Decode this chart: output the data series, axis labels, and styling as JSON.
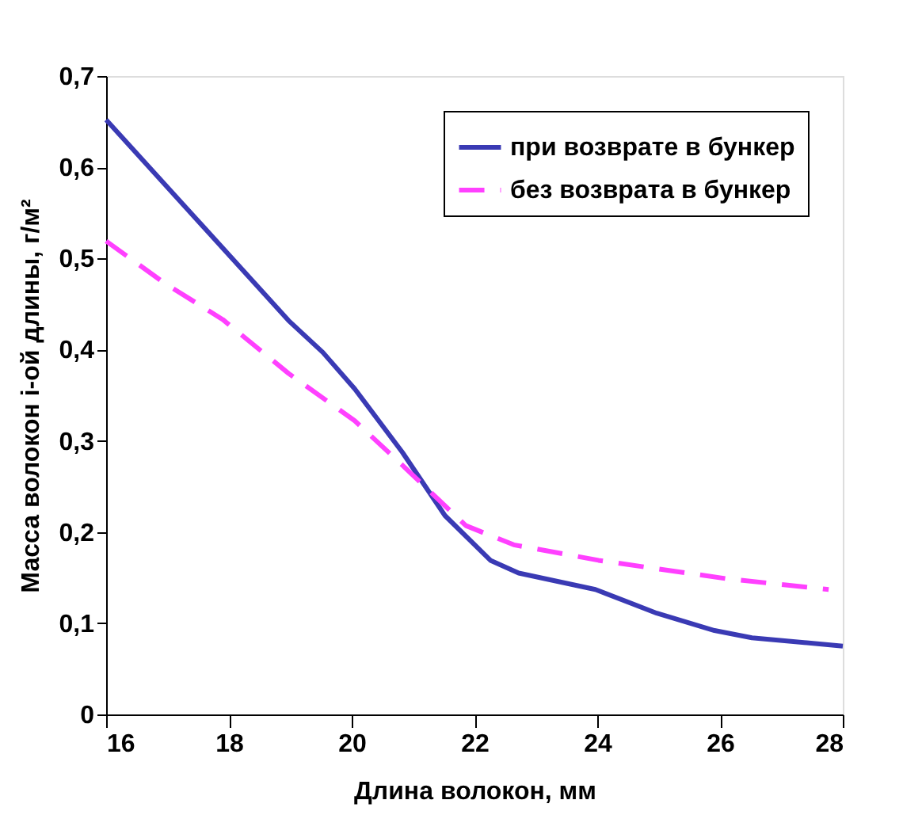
{
  "chart_data": {
    "type": "line",
    "xlabel": "Длина волокон, мм",
    "ylabel": "Масса волокон i-ой длины, г/м²",
    "xlim": [
      16,
      28
    ],
    "xticks": [
      16,
      18,
      20,
      22,
      24,
      26,
      28
    ],
    "ylim": [
      0,
      0.7
    ],
    "yticks": [
      {
        "value": 0,
        "label": "0"
      },
      {
        "value": 0.1,
        "label": "0,1"
      },
      {
        "value": 0.2,
        "label": "0,2"
      },
      {
        "value": 0.3,
        "label": "0,3"
      },
      {
        "value": 0.4,
        "label": "0,4"
      },
      {
        "value": 0.5,
        "label": "0,5"
      },
      {
        "value": 0.6,
        "label": "0,6"
      },
      {
        "value": 0.7,
        "label": "0,7"
      }
    ],
    "grid": false,
    "legend": "top right",
    "marker": "none",
    "series": [
      {
        "name": "при возврате в бункер",
        "color": "#3a3ab4",
        "line_style": "solid",
        "x": [
          16,
          18.97,
          19.53,
          20.05,
          20.83,
          21.52,
          22.26,
          22.72,
          23.97,
          24.97,
          25.91,
          26.52,
          28
        ],
        "values": [
          0.652,
          0.432,
          0.397,
          0.357,
          0.287,
          0.218,
          0.169,
          0.155,
          0.137,
          0.111,
          0.092,
          0.084,
          0.075
        ]
      },
      {
        "name": "без возврата в бункер",
        "color": "#ff40ff",
        "line_style": "dashed",
        "x": [
          16,
          16.95,
          17.9,
          18.97,
          20.05,
          20.83,
          21.86,
          22.64,
          24.02,
          26.09,
          27.77
        ],
        "values": [
          0.519,
          0.473,
          0.433,
          0.374,
          0.322,
          0.273,
          0.207,
          0.186,
          0.169,
          0.149,
          0.137
        ]
      }
    ]
  }
}
